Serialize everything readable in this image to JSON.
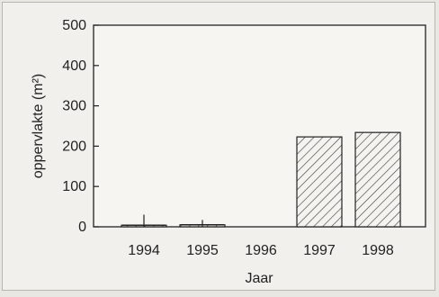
{
  "chart_data": {
    "type": "bar",
    "categories": [
      "1994",
      "1995",
      "1996",
      "1997",
      "1998"
    ],
    "values": [
      4,
      5,
      0,
      223,
      234
    ],
    "error_bars": [
      26,
      12,
      null,
      null,
      null
    ],
    "xlabel": "Jaar",
    "ylabel": "oppervlakte (m²)",
    "ylim": [
      0,
      500
    ],
    "yticks": [
      0,
      100,
      200,
      300,
      400,
      500
    ],
    "bar_fill": "hatched",
    "grid": false,
    "legend": "none",
    "colors": {
      "bar_stroke": "#222222",
      "hatch": "#444444",
      "axis": "#222222",
      "background": "#f1f0ec"
    }
  }
}
